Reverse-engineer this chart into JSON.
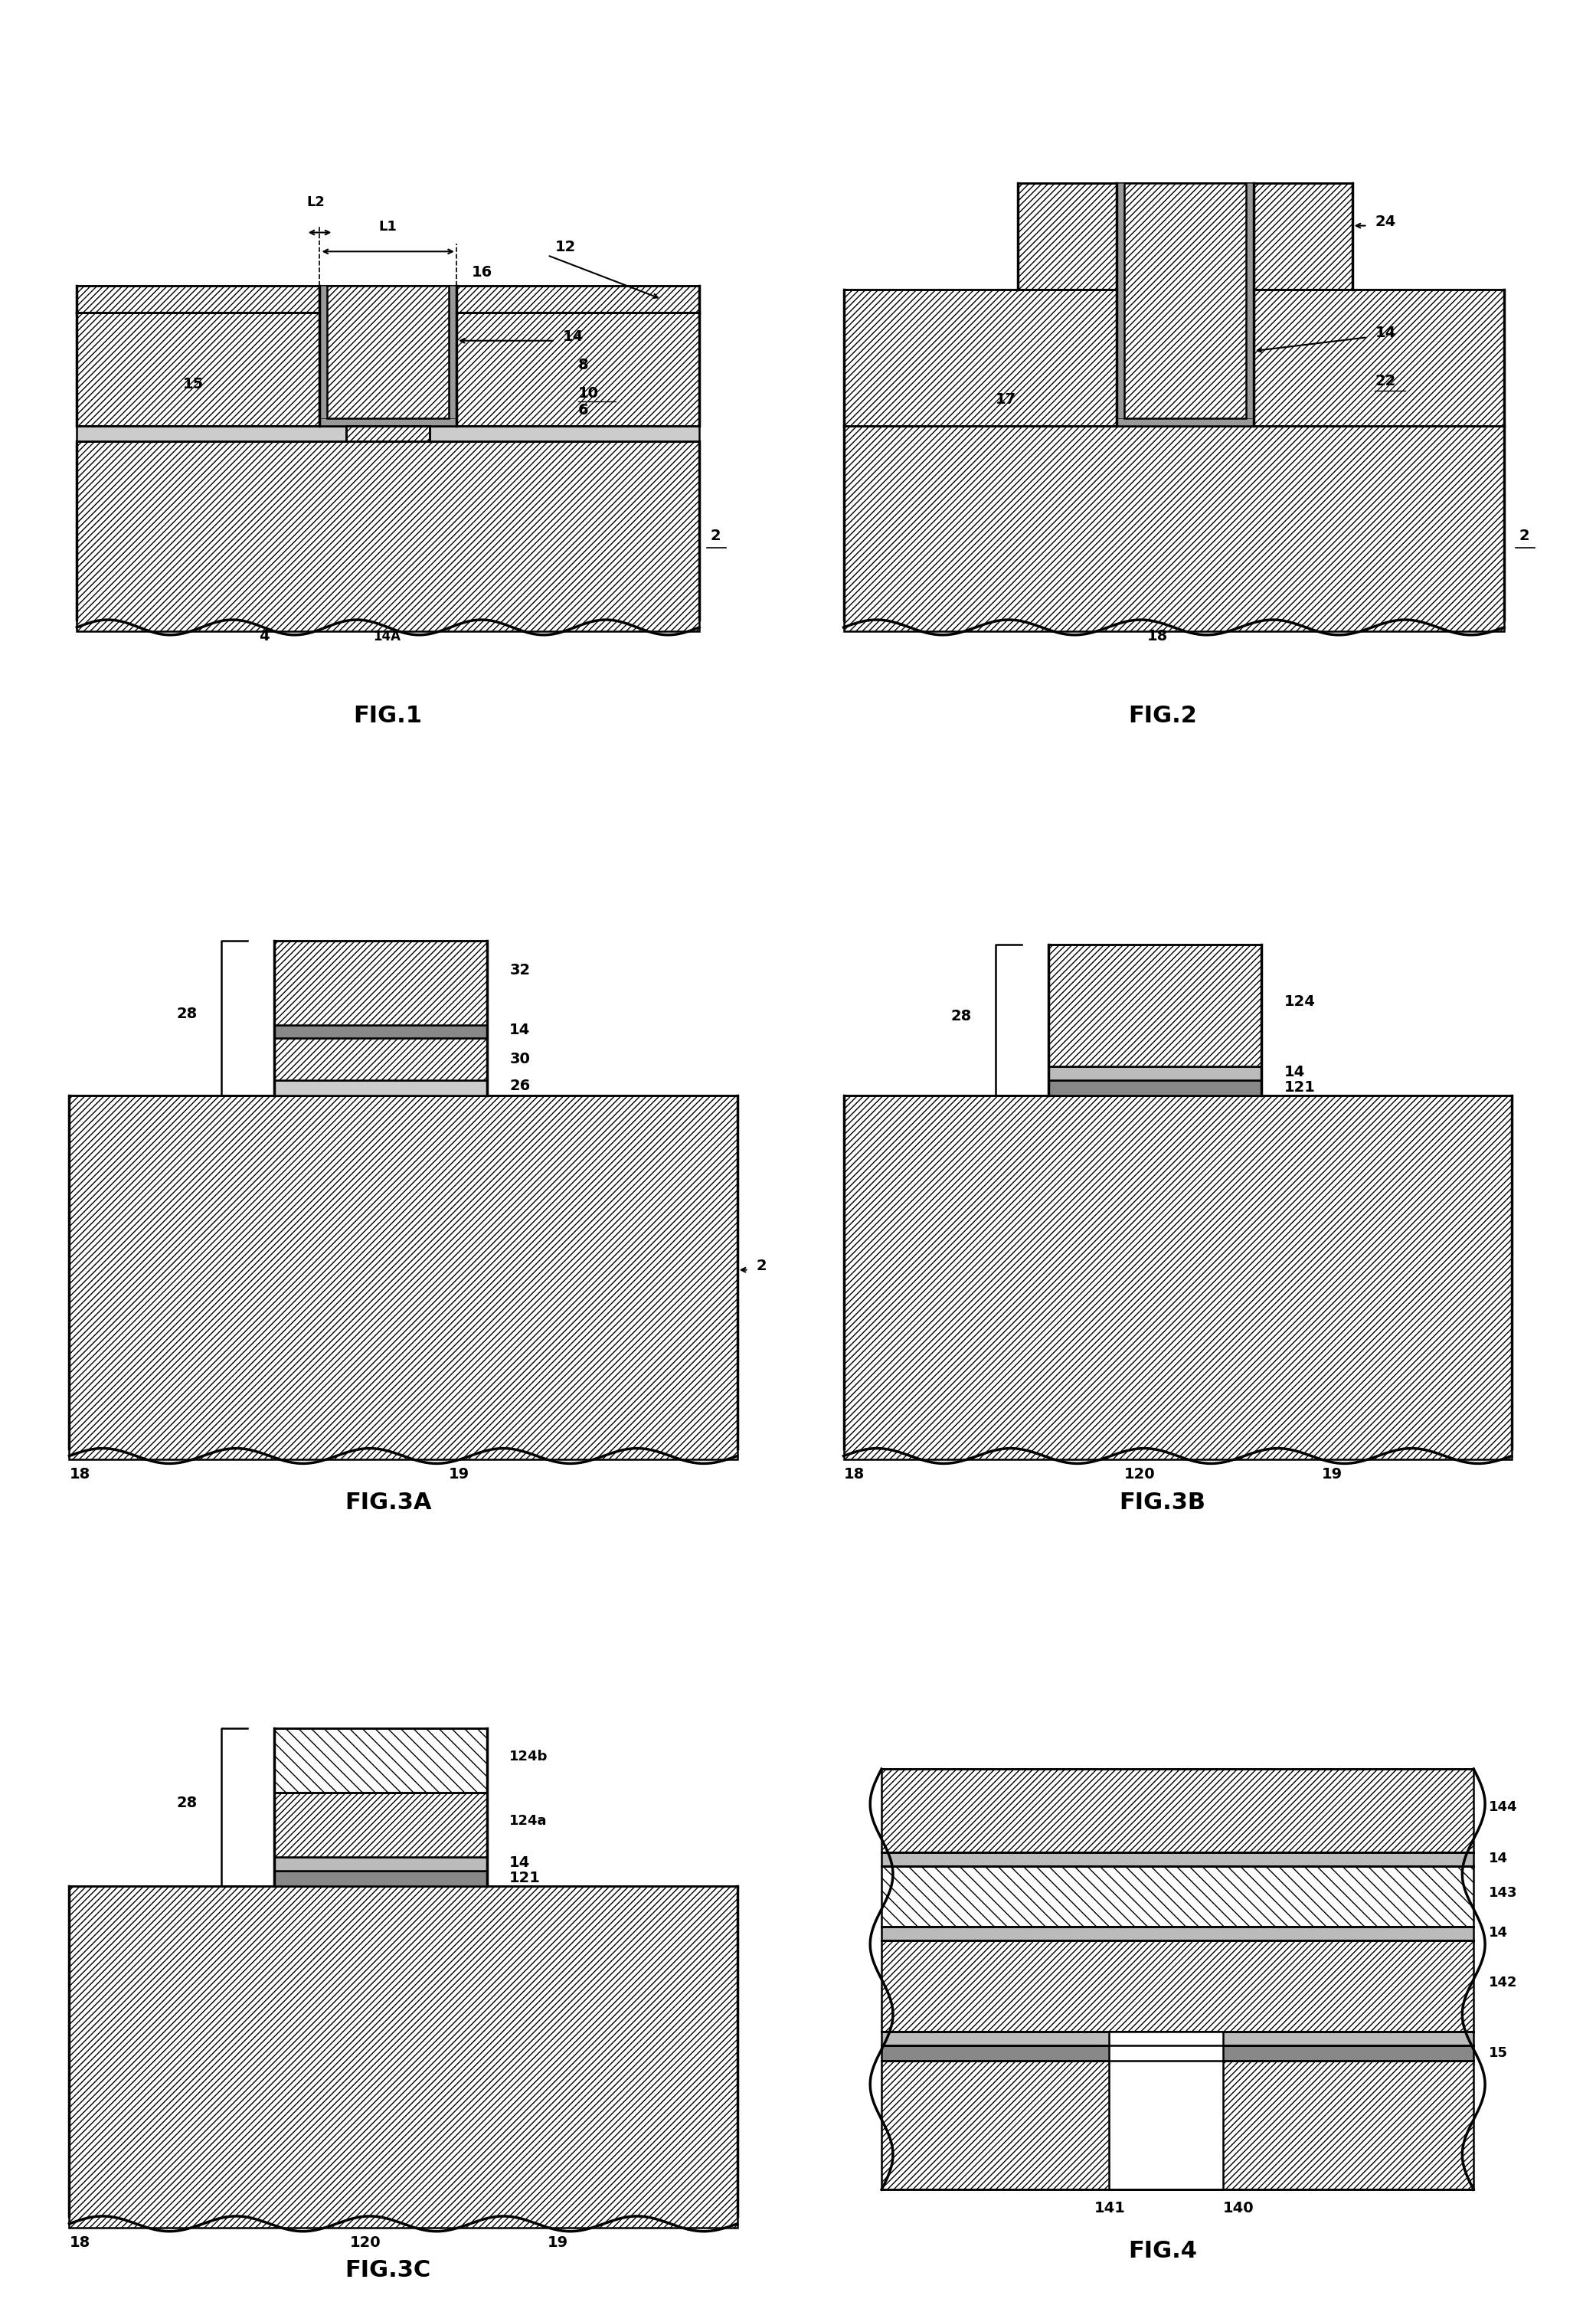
{
  "background_color": "#ffffff",
  "hatch_pattern": "////",
  "line_color": "#000000",
  "fig_labels": [
    "FIG.1",
    "FIG.2",
    "FIG.3A",
    "FIG.3B",
    "FIG.3C",
    "FIG.4"
  ],
  "font_size_label": 22,
  "font_size_ref": 16,
  "lw": 1.8,
  "lw_thick": 2.5
}
